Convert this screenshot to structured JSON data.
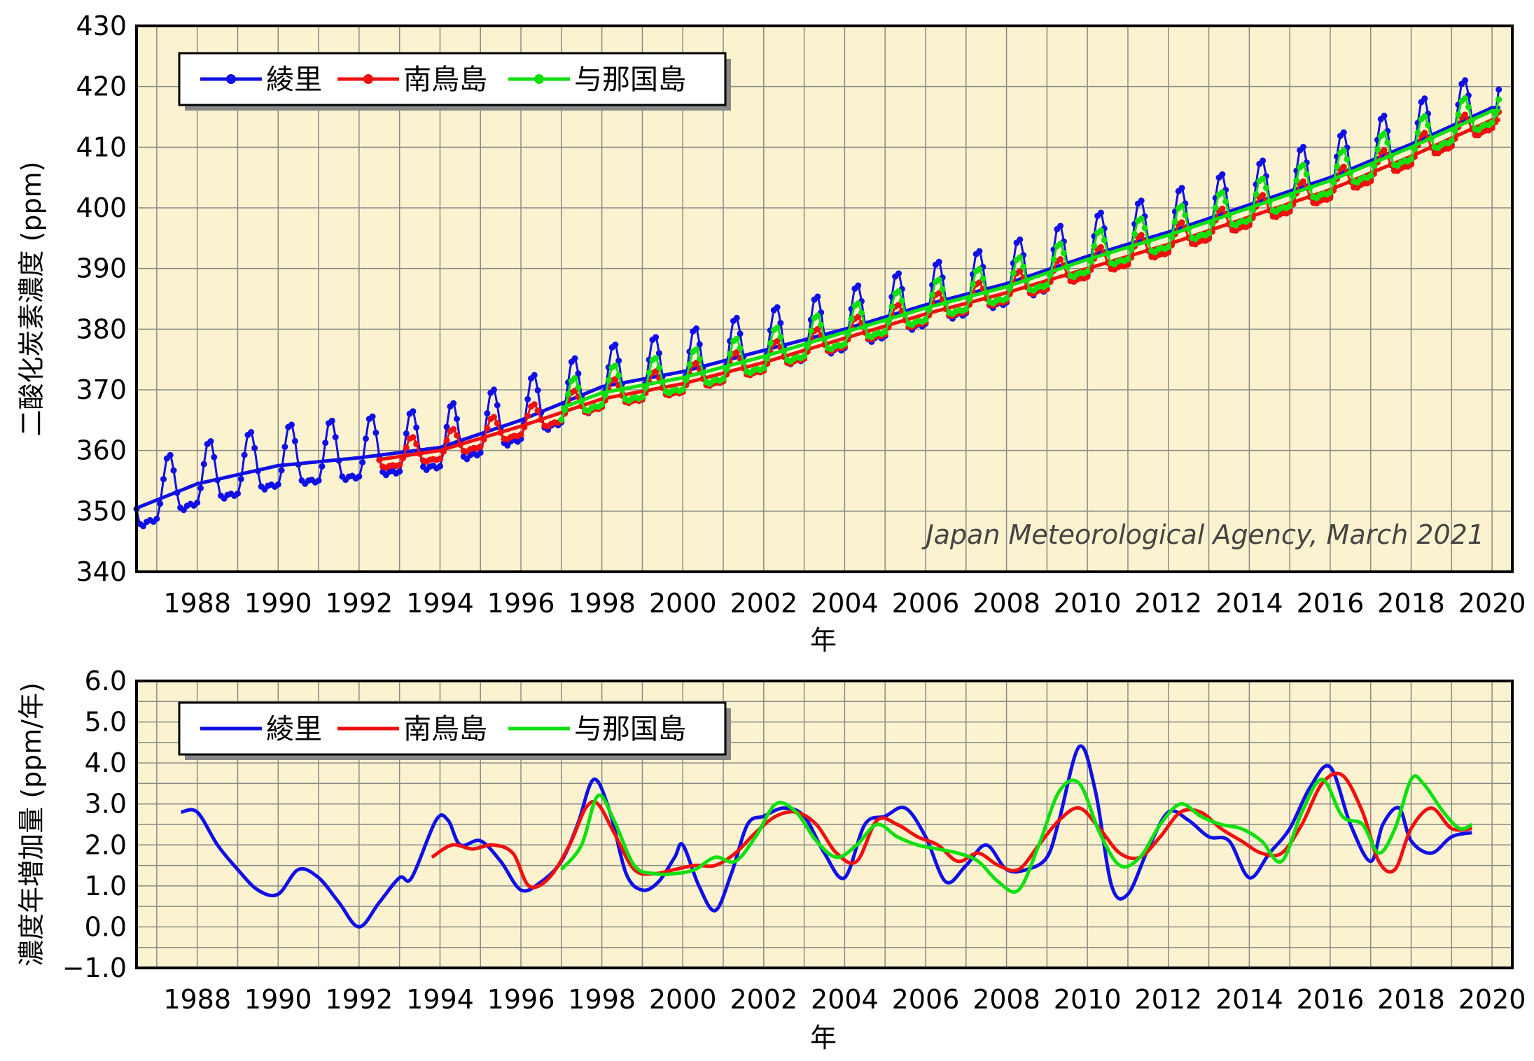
{
  "colors": {
    "ryori": "#1010e6",
    "minamitorishima": "#f01010",
    "yonagunijima": "#10e010",
    "panel": "#fbf3cf",
    "grid": "#8a8a8a"
  },
  "chart_data": [
    {
      "type": "line",
      "title": "",
      "xlabel": "年",
      "ylabel": "二酸化炭素濃度 (ppm)",
      "xlim": [
        1986.5,
        2020.5
      ],
      "ylim": [
        340,
        430
      ],
      "xticks": [
        "1988",
        "1990",
        "1992",
        "1994",
        "1996",
        "1998",
        "2000",
        "2002",
        "2004",
        "2006",
        "2008",
        "2010",
        "2012",
        "2014",
        "2016",
        "2018",
        "2020"
      ],
      "yticks": [
        "340",
        "350",
        "360",
        "370",
        "380",
        "390",
        "400",
        "410",
        "420",
        "430"
      ],
      "legend": [
        "綾里",
        "南鳥島",
        "与那国島"
      ],
      "annotation": "Japan Meteorological Agency, March 2021",
      "series": [
        {
          "name": "綾里",
          "start": 1986.5,
          "end": 2020.2,
          "trend_x": [
            1986.5,
            1988,
            1990,
            1992,
            1994,
            1996,
            1998,
            2000,
            2002,
            2004,
            2006,
            2008,
            2010,
            2012,
            2014,
            2016,
            2018,
            2020
          ],
          "trend_y": [
            350.5,
            354.5,
            357.5,
            358.8,
            360.5,
            365.0,
            370.5,
            373.0,
            376.5,
            380.0,
            384.0,
            387.5,
            392.0,
            396.0,
            400.5,
            405.0,
            410.5,
            416.5
          ],
          "amplitude": 8.0,
          "phase": 0.1
        },
        {
          "name": "南鳥島",
          "start": 1992.5,
          "end": 2020.2,
          "trend_x": [
            1992.5,
            1994,
            1996,
            1998,
            2000,
            2002,
            2004,
            2006,
            2008,
            2010,
            2012,
            2014,
            2016,
            2018,
            2020
          ],
          "trend_y": [
            358.5,
            360.0,
            364.0,
            368.5,
            371.0,
            374.5,
            378.5,
            382.5,
            386.0,
            390.0,
            394.0,
            398.5,
            403.0,
            408.5,
            414.5
          ],
          "amplitude": 3.5,
          "phase": 0.1
        },
        {
          "name": "与那国島",
          "start": 1997.0,
          "end": 2020.2,
          "trend_x": [
            1997,
            1998,
            2000,
            2002,
            2004,
            2006,
            2008,
            2010,
            2012,
            2014,
            2016,
            2018,
            2020
          ],
          "trend_y": [
            367.0,
            369.5,
            372.0,
            375.5,
            379.5,
            383.5,
            387.0,
            391.5,
            395.5,
            400.0,
            404.5,
            410.0,
            416.0
          ],
          "amplitude": 5.0,
          "phase": 0.1
        }
      ]
    },
    {
      "type": "line",
      "title": "",
      "xlabel": "年",
      "ylabel": "濃度年増加量 (ppm/年)",
      "xlim": [
        1986.5,
        2020.5
      ],
      "ylim": [
        -1.0,
        6.0
      ],
      "xticks": [
        "1988",
        "1990",
        "1992",
        "1994",
        "1996",
        "1998",
        "2000",
        "2002",
        "2004",
        "2006",
        "2008",
        "2010",
        "2012",
        "2014",
        "2016",
        "2018",
        "2020"
      ],
      "yticks": [
        "−1.0",
        "0.0",
        "1.0",
        "2.0",
        "3.0",
        "4.0",
        "5.0",
        "6.0"
      ],
      "legend": [
        "綾里",
        "南鳥島",
        "与那国島"
      ],
      "series": [
        {
          "name": "綾里",
          "x": [
            1987.6,
            1988.0,
            1988.5,
            1989.0,
            1989.5,
            1990.0,
            1990.5,
            1991.0,
            1991.5,
            1992.0,
            1992.5,
            1993.0,
            1993.3,
            1993.9,
            1994.2,
            1994.5,
            1995.0,
            1995.5,
            1996.0,
            1996.5,
            1997.0,
            1997.4,
            1997.8,
            1998.2,
            1998.6,
            1999.0,
            1999.4,
            1999.8,
            2000.0,
            2000.4,
            2000.8,
            2001.2,
            2001.6,
            2002.0,
            2002.5,
            2003.0,
            2003.5,
            2004.0,
            2004.5,
            2005.0,
            2005.5,
            2006.0,
            2006.5,
            2007.0,
            2007.5,
            2008.0,
            2008.5,
            2009.0,
            2009.3,
            2009.8,
            2010.2,
            2010.6,
            2011.0,
            2011.5,
            2012.0,
            2012.5,
            2013.0,
            2013.5,
            2014.0,
            2014.5,
            2015.0,
            2015.5,
            2016.0,
            2016.5,
            2017.0,
            2017.3,
            2017.7,
            2018.0,
            2018.5,
            2019.0,
            2019.5
          ],
          "y": [
            2.8,
            2.8,
            2.0,
            1.4,
            0.9,
            0.8,
            1.4,
            1.2,
            0.6,
            0.0,
            0.6,
            1.2,
            1.2,
            2.6,
            2.6,
            2.0,
            2.1,
            1.6,
            0.9,
            1.1,
            1.6,
            2.5,
            3.6,
            2.8,
            1.3,
            0.9,
            1.1,
            1.7,
            2.0,
            1.0,
            0.4,
            1.3,
            2.5,
            2.7,
            2.9,
            2.7,
            1.8,
            1.2,
            2.5,
            2.7,
            2.9,
            2.2,
            1.1,
            1.5,
            2.0,
            1.4,
            1.4,
            1.7,
            2.6,
            4.4,
            3.3,
            1.0,
            0.8,
            1.9,
            2.8,
            2.6,
            2.2,
            2.1,
            1.2,
            1.8,
            2.4,
            3.4,
            3.9,
            2.5,
            1.6,
            2.5,
            2.9,
            2.1,
            1.8,
            2.2,
            2.3
          ]
        },
        {
          "name": "南鳥島",
          "x": [
            1993.8,
            1994.3,
            1994.8,
            1995.3,
            1995.8,
            1996.2,
            1996.7,
            1997.2,
            1997.6,
            1997.9,
            1998.3,
            1998.8,
            1999.3,
            1999.8,
            2000.3,
            2000.8,
            2001.3,
            2001.8,
            2002.3,
            2002.8,
            2003.3,
            2003.8,
            2004.3,
            2004.8,
            2005.3,
            2005.8,
            2006.3,
            2006.8,
            2007.3,
            2007.8,
            2008.3,
            2008.8,
            2009.3,
            2009.8,
            2010.3,
            2010.8,
            2011.3,
            2011.8,
            2012.3,
            2012.8,
            2013.3,
            2013.8,
            2014.3,
            2014.8,
            2015.3,
            2015.8,
            2016.3,
            2016.8,
            2017.2,
            2017.6,
            2018.0,
            2018.5,
            2019.0,
            2019.5
          ],
          "y": [
            1.7,
            2.0,
            1.9,
            2.0,
            1.8,
            1.0,
            1.2,
            2.0,
            2.9,
            3.0,
            2.3,
            1.4,
            1.3,
            1.4,
            1.5,
            1.5,
            1.8,
            2.3,
            2.7,
            2.8,
            2.5,
            1.8,
            1.6,
            2.6,
            2.5,
            2.2,
            2.0,
            1.6,
            1.8,
            1.5,
            1.4,
            2.0,
            2.6,
            2.9,
            2.4,
            1.8,
            1.7,
            2.2,
            2.8,
            2.8,
            2.4,
            2.1,
            1.8,
            1.8,
            2.5,
            3.5,
            3.7,
            2.8,
            1.6,
            1.4,
            2.4,
            2.9,
            2.4,
            2.4
          ]
        },
        {
          "name": "与那国島",
          "x": [
            1997.0,
            1997.5,
            1997.9,
            1998.3,
            1998.8,
            1999.3,
            1999.8,
            2000.3,
            2000.8,
            2001.3,
            2001.8,
            2002.3,
            2002.8,
            2003.3,
            2003.8,
            2004.3,
            2004.8,
            2005.3,
            2005.8,
            2006.3,
            2006.8,
            2007.3,
            2007.8,
            2008.3,
            2008.8,
            2009.3,
            2009.8,
            2010.3,
            2010.8,
            2011.3,
            2011.8,
            2012.3,
            2012.8,
            2013.3,
            2013.8,
            2014.3,
            2014.8,
            2015.3,
            2015.8,
            2016.3,
            2016.8,
            2017.2,
            2017.6,
            2018.0,
            2018.3,
            2018.8,
            2019.2,
            2019.5
          ],
          "y": [
            1.4,
            2.0,
            3.2,
            2.6,
            1.5,
            1.3,
            1.3,
            1.4,
            1.7,
            1.6,
            2.2,
            3.0,
            2.8,
            2.1,
            1.7,
            2.0,
            2.5,
            2.2,
            2.0,
            1.9,
            1.8,
            1.6,
            1.1,
            0.9,
            2.0,
            3.3,
            3.5,
            2.3,
            1.5,
            1.7,
            2.5,
            3.0,
            2.7,
            2.5,
            2.4,
            2.1,
            1.6,
            2.8,
            3.6,
            2.7,
            2.5,
            1.8,
            2.4,
            3.6,
            3.5,
            2.8,
            2.4,
            2.5
          ]
        }
      ]
    }
  ]
}
